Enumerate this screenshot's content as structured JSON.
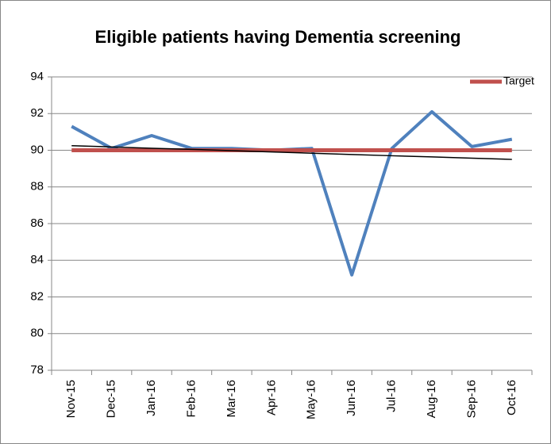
{
  "chart_data": {
    "type": "line",
    "title": "Eligible patients having Dementia screening",
    "categories": [
      "Nov-15",
      "Dec-15",
      "Jan-16",
      "Feb-16",
      "Mar-16",
      "Apr-16",
      "May-16",
      "Jun-16",
      "Jul-16",
      "Aug-16",
      "Sep-16",
      "Oct-16"
    ],
    "series": [
      {
        "color": "#4f81bd",
        "values": [
          91.3,
          90.1,
          90.8,
          90.1,
          90.1,
          90.0,
          90.1,
          83.2,
          90.1,
          92.1,
          90.2,
          90.6
        ]
      },
      {
        "name": "Target",
        "color": "#c0504d",
        "values": [
          90,
          90,
          90,
          90,
          90,
          90,
          90,
          90,
          90,
          90,
          90,
          90
        ]
      },
      {
        "color": "#000000",
        "values": [
          90.25,
          90.18,
          90.11,
          90.05,
          89.98,
          89.91,
          89.84,
          89.77,
          89.7,
          89.64,
          89.57,
          89.5
        ]
      }
    ],
    "ylim": [
      78,
      94
    ],
    "yticks": [
      78,
      80,
      82,
      84,
      86,
      88,
      90,
      92,
      94
    ],
    "grid": true,
    "legend": "top-right"
  }
}
